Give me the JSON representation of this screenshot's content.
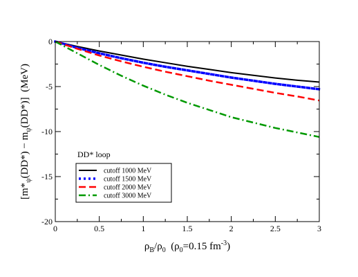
{
  "chart_data": {
    "type": "line",
    "xlabel": "ρB/ρ0  (ρ0=0.15 fm-3)",
    "ylabel": "[m*ψ(DD*) − mψ(DD*)]  (MeV)",
    "xlim": [
      0,
      3
    ],
    "ylim": [
      -20,
      0
    ],
    "xticks": [
      "0",
      "0.5",
      "1",
      "1.5",
      "2",
      "2.5",
      "3"
    ],
    "yticks": [
      "0",
      "-5",
      "-10",
      "-15",
      "-20"
    ],
    "xtick_values": [
      0,
      0.5,
      1,
      1.5,
      2,
      2.5,
      3
    ],
    "ytick_values": [
      0,
      -5,
      -10,
      -15,
      -20
    ],
    "grid": false,
    "legend_position": "bottom-left",
    "annotation": "DD* loop",
    "series": [
      {
        "name": "cutoff 1000 MeV",
        "color": "#000000",
        "dash": "solid",
        "x": [
          0,
          0.25,
          0.5,
          0.75,
          1,
          1.25,
          1.5,
          1.75,
          2,
          2.25,
          2.5,
          2.75,
          3
        ],
        "y": [
          0,
          -0.55,
          -1.05,
          -1.5,
          -1.95,
          -2.35,
          -2.75,
          -3.1,
          -3.45,
          -3.75,
          -4.05,
          -4.3,
          -4.5
        ]
      },
      {
        "name": "cutoff 1500 MeV",
        "color": "#0000ff",
        "dash": "dotted",
        "x": [
          0,
          0.25,
          0.5,
          0.75,
          1,
          1.25,
          1.5,
          1.75,
          2,
          2.25,
          2.5,
          2.75,
          3
        ],
        "y": [
          0,
          -0.7,
          -1.3,
          -1.85,
          -2.35,
          -2.8,
          -3.2,
          -3.6,
          -4.0,
          -4.35,
          -4.7,
          -5.0,
          -5.3
        ]
      },
      {
        "name": "cutoff 2000 MeV",
        "color": "#ff0000",
        "dash": "dashed",
        "x": [
          0,
          0.25,
          0.5,
          0.75,
          1,
          1.25,
          1.5,
          1.75,
          2,
          2.25,
          2.5,
          2.75,
          3
        ],
        "y": [
          0,
          -0.8,
          -1.55,
          -2.2,
          -2.8,
          -3.35,
          -3.85,
          -4.35,
          -4.8,
          -5.25,
          -5.7,
          -6.1,
          -6.55
        ]
      },
      {
        "name": "cutoff 3000 MeV",
        "color": "#009900",
        "dash": "dashdot",
        "x": [
          0,
          0.25,
          0.5,
          0.75,
          1,
          1.25,
          1.5,
          1.75,
          2,
          2.25,
          2.5,
          2.75,
          3
        ],
        "y": [
          0,
          -1.3,
          -2.6,
          -3.8,
          -4.9,
          -5.9,
          -6.8,
          -7.6,
          -8.4,
          -9.0,
          -9.6,
          -10.1,
          -10.6
        ]
      }
    ]
  }
}
